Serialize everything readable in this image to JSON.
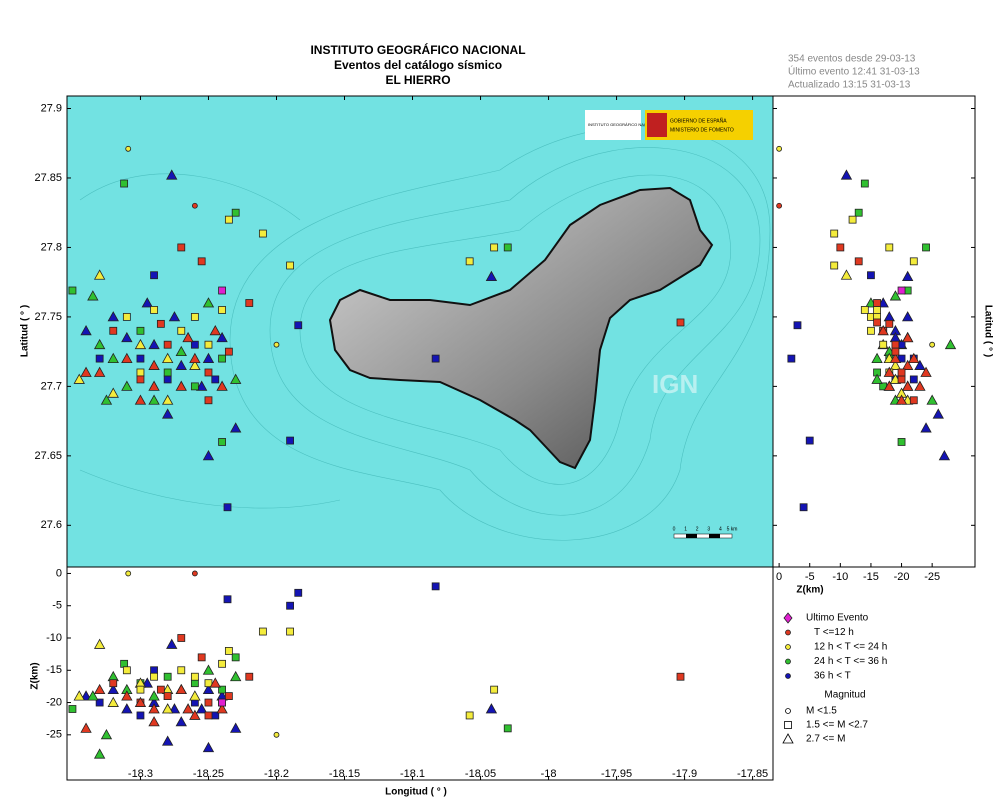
{
  "header": {
    "title": "INSTITUTO GEOGRÁFICO NACIONAL",
    "subtitle": "Eventos del catálogo sísmico",
    "region": "EL HIERRO"
  },
  "info": [
    "354 eventos desde 29-03-13",
    "Último evento 12:41 31-03-13",
    "Actualizado  13:15  31-03-13"
  ],
  "logos": {
    "ign": "INSTITUTO GEOGRÁFICO NACIONAL",
    "government": "GOBIERNO DE ESPAÑA",
    "ministry": "MINISTERIO DE FOMENTO"
  },
  "watermark": "IGN",
  "scale_bar": [
    "0",
    "1",
    "2",
    "3",
    "4",
    "5 km"
  ],
  "chart_data": {
    "type": "scatter",
    "xlabel": "Longitud ( ° )",
    "ylabel": "Latitud ( ° )",
    "zlabel": "Z(km)",
    "xlim": [
      -18.354,
      -17.835
    ],
    "ylim": [
      27.57,
      27.909
    ],
    "zlim": [
      1,
      -32
    ],
    "xticks": [
      -18.3,
      -18.25,
      -18.2,
      -18.15,
      -18.1,
      -18.05,
      -18,
      -17.95,
      -17.9,
      -17.85
    ],
    "yticks": [
      27.6,
      27.65,
      27.7,
      27.75,
      27.8,
      27.85,
      27.9
    ],
    "zticks": [
      0,
      -5,
      -10,
      -15,
      -20,
      -25
    ],
    "magnitude_title": "Magnitud",
    "magnitude_classes": [
      {
        "label": "M <1.5",
        "shape": "circle"
      },
      {
        "label": "1.5 <= M <2.7",
        "shape": "square"
      },
      {
        "label": "2.7 <= M",
        "shape": "triangle"
      }
    ],
    "series": [
      {
        "name": "Ultimo Evento",
        "color": "#e020d0",
        "events": [
          {
            "lon": -18.24,
            "lat": 27.769,
            "z": -20,
            "shape": "square"
          }
        ]
      },
      {
        "name": "T <=12 h",
        "color": "#e03820",
        "events": [
          {
            "lon": -18.33,
            "lat": 27.71,
            "z": -18,
            "shape": "triangle"
          },
          {
            "lon": -18.31,
            "lat": 27.72,
            "z": -19,
            "shape": "triangle"
          },
          {
            "lon": -18.3,
            "lat": 27.705,
            "z": -20,
            "shape": "square"
          },
          {
            "lon": -18.29,
            "lat": 27.715,
            "z": -21,
            "shape": "triangle"
          },
          {
            "lon": -18.28,
            "lat": 27.73,
            "z": -19,
            "shape": "square"
          },
          {
            "lon": -18.27,
            "lat": 27.7,
            "z": -18,
            "shape": "triangle"
          },
          {
            "lon": -18.26,
            "lat": 27.72,
            "z": -22,
            "shape": "triangle"
          },
          {
            "lon": -18.25,
            "lat": 27.71,
            "z": -20,
            "shape": "square"
          },
          {
            "lon": -18.24,
            "lat": 27.7,
            "z": -21,
            "shape": "triangle"
          },
          {
            "lon": -18.235,
            "lat": 27.725,
            "z": -19,
            "shape": "square"
          },
          {
            "lon": -18.32,
            "lat": 27.74,
            "z": -17,
            "shape": "square"
          },
          {
            "lon": -18.3,
            "lat": 27.69,
            "z": -20,
            "shape": "triangle"
          },
          {
            "lon": -18.285,
            "lat": 27.745,
            "z": -18,
            "shape": "square"
          },
          {
            "lon": -18.265,
            "lat": 27.735,
            "z": -21,
            "shape": "triangle"
          },
          {
            "lon": -18.245,
            "lat": 27.74,
            "z": -17,
            "shape": "triangle"
          },
          {
            "lon": -18.255,
            "lat": 27.79,
            "z": -13,
            "shape": "square"
          },
          {
            "lon": -18.27,
            "lat": 27.8,
            "z": -10,
            "shape": "square"
          },
          {
            "lon": -18.22,
            "lat": 27.76,
            "z": -16,
            "shape": "square"
          },
          {
            "lon": -18.34,
            "lat": 27.71,
            "z": -24,
            "shape": "triangle"
          },
          {
            "lon": -18.29,
            "lat": 27.7,
            "z": -23,
            "shape": "triangle"
          },
          {
            "lon": -18.25,
            "lat": 27.69,
            "z": -22,
            "shape": "square"
          },
          {
            "lon": -18.26,
            "lat": 27.83,
            "z": 0,
            "shape": "circle"
          },
          {
            "lon": -17.903,
            "lat": 27.746,
            "z": -16,
            "shape": "square"
          }
        ]
      },
      {
        "name": "12 h  < T <= 24 h",
        "color": "#f4ec3c",
        "events": [
          {
            "lon": -18.33,
            "lat": 27.78,
            "z": -11,
            "shape": "triangle"
          },
          {
            "lon": -18.31,
            "lat": 27.75,
            "z": -15,
            "shape": "square"
          },
          {
            "lon": -18.3,
            "lat": 27.73,
            "z": -17,
            "shape": "triangle"
          },
          {
            "lon": -18.29,
            "lat": 27.755,
            "z": -16,
            "shape": "square"
          },
          {
            "lon": -18.28,
            "lat": 27.72,
            "z": -18,
            "shape": "triangle"
          },
          {
            "lon": -18.27,
            "lat": 27.74,
            "z": -15,
            "shape": "square"
          },
          {
            "lon": -18.26,
            "lat": 27.715,
            "z": -19,
            "shape": "triangle"
          },
          {
            "lon": -18.25,
            "lat": 27.73,
            "z": -17,
            "shape": "square"
          },
          {
            "lon": -18.24,
            "lat": 27.755,
            "z": -14,
            "shape": "square"
          },
          {
            "lon": -18.32,
            "lat": 27.695,
            "z": -20,
            "shape": "triangle"
          },
          {
            "lon": -18.3,
            "lat": 27.71,
            "z": -18,
            "shape": "square"
          },
          {
            "lon": -18.28,
            "lat": 27.69,
            "z": -21,
            "shape": "triangle"
          },
          {
            "lon": -18.26,
            "lat": 27.75,
            "z": -16,
            "shape": "square"
          },
          {
            "lon": -18.309,
            "lat": 27.871,
            "z": 0,
            "shape": "circle"
          },
          {
            "lon": -18.21,
            "lat": 27.81,
            "z": -9,
            "shape": "square"
          },
          {
            "lon": -18.19,
            "lat": 27.787,
            "z": -9,
            "shape": "square"
          },
          {
            "lon": -18.04,
            "lat": 27.8,
            "z": -18,
            "shape": "square"
          },
          {
            "lon": -18.058,
            "lat": 27.79,
            "z": -22,
            "shape": "square"
          },
          {
            "lon": -18.235,
            "lat": 27.82,
            "z": -12,
            "shape": "square"
          },
          {
            "lon": -18.345,
            "lat": 27.705,
            "z": -19,
            "shape": "triangle"
          },
          {
            "lon": -18.2,
            "lat": 27.73,
            "z": -25,
            "shape": "circle"
          }
        ]
      },
      {
        "name": "24 h  < T <= 36 h",
        "color": "#30c030",
        "events": [
          {
            "lon": -18.35,
            "lat": 27.769,
            "z": -21,
            "shape": "square"
          },
          {
            "lon": -18.335,
            "lat": 27.765,
            "z": -19,
            "shape": "triangle"
          },
          {
            "lon": -18.32,
            "lat": 27.72,
            "z": -16,
            "shape": "triangle"
          },
          {
            "lon": -18.31,
            "lat": 27.7,
            "z": -18,
            "shape": "triangle"
          },
          {
            "lon": -18.3,
            "lat": 27.74,
            "z": -17,
            "shape": "square"
          },
          {
            "lon": -18.29,
            "lat": 27.69,
            "z": -19,
            "shape": "triangle"
          },
          {
            "lon": -18.28,
            "lat": 27.71,
            "z": -16,
            "shape": "square"
          },
          {
            "lon": -18.27,
            "lat": 27.725,
            "z": -18,
            "shape": "triangle"
          },
          {
            "lon": -18.26,
            "lat": 27.7,
            "z": -17,
            "shape": "square"
          },
          {
            "lon": -18.25,
            "lat": 27.76,
            "z": -15,
            "shape": "triangle"
          },
          {
            "lon": -18.24,
            "lat": 27.72,
            "z": -18,
            "shape": "square"
          },
          {
            "lon": -18.23,
            "lat": 27.705,
            "z": -16,
            "shape": "triangle"
          },
          {
            "lon": -18.325,
            "lat": 27.69,
            "z": -25,
            "shape": "triangle"
          },
          {
            "lon": -18.312,
            "lat": 27.846,
            "z": -14,
            "shape": "square"
          },
          {
            "lon": -18.23,
            "lat": 27.825,
            "z": -13,
            "shape": "square"
          },
          {
            "lon": -18.03,
            "lat": 27.8,
            "z": -24,
            "shape": "square"
          },
          {
            "lon": -18.24,
            "lat": 27.66,
            "z": -20,
            "shape": "square"
          },
          {
            "lon": -18.33,
            "lat": 27.73,
            "z": -28,
            "shape": "triangle"
          }
        ]
      },
      {
        "name": "36 h <  T",
        "color": "#1414b4",
        "events": [
          {
            "lon": -18.34,
            "lat": 27.74,
            "z": -19,
            "shape": "triangle"
          },
          {
            "lon": -18.33,
            "lat": 27.72,
            "z": -20,
            "shape": "square"
          },
          {
            "lon": -18.32,
            "lat": 27.75,
            "z": -18,
            "shape": "triangle"
          },
          {
            "lon": -18.31,
            "lat": 27.735,
            "z": -21,
            "shape": "triangle"
          },
          {
            "lon": -18.3,
            "lat": 27.72,
            "z": -22,
            "shape": "square"
          },
          {
            "lon": -18.295,
            "lat": 27.76,
            "z": -17,
            "shape": "triangle"
          },
          {
            "lon": -18.29,
            "lat": 27.73,
            "z": -20,
            "shape": "triangle"
          },
          {
            "lon": -18.28,
            "lat": 27.705,
            "z": -19,
            "shape": "square"
          },
          {
            "lon": -18.275,
            "lat": 27.75,
            "z": -21,
            "shape": "triangle"
          },
          {
            "lon": -18.27,
            "lat": 27.715,
            "z": -23,
            "shape": "triangle"
          },
          {
            "lon": -18.26,
            "lat": 27.73,
            "z": -20,
            "shape": "square"
          },
          {
            "lon": -18.255,
            "lat": 27.7,
            "z": -21,
            "shape": "triangle"
          },
          {
            "lon": -18.25,
            "lat": 27.72,
            "z": -18,
            "shape": "triangle"
          },
          {
            "lon": -18.245,
            "lat": 27.705,
            "z": -22,
            "shape": "square"
          },
          {
            "lon": -18.24,
            "lat": 27.735,
            "z": -19,
            "shape": "triangle"
          },
          {
            "lon": -18.23,
            "lat": 27.67,
            "z": -24,
            "shape": "triangle"
          },
          {
            "lon": -18.28,
            "lat": 27.68,
            "z": -26,
            "shape": "triangle"
          },
          {
            "lon": -18.277,
            "lat": 27.852,
            "z": -11,
            "shape": "triangle"
          },
          {
            "lon": -18.29,
            "lat": 27.78,
            "z": -15,
            "shape": "square"
          },
          {
            "lon": -18.19,
            "lat": 27.661,
            "z": -5,
            "shape": "square"
          },
          {
            "lon": -18.236,
            "lat": 27.613,
            "z": -4,
            "shape": "square"
          },
          {
            "lon": -18.184,
            "lat": 27.744,
            "z": -3,
            "shape": "square"
          },
          {
            "lon": -18.083,
            "lat": 27.72,
            "z": -2,
            "shape": "square"
          },
          {
            "lon": -18.042,
            "lat": 27.779,
            "z": -21,
            "shape": "triangle"
          },
          {
            "lon": -18.25,
            "lat": 27.65,
            "z": -27,
            "shape": "triangle"
          }
        ]
      }
    ]
  }
}
